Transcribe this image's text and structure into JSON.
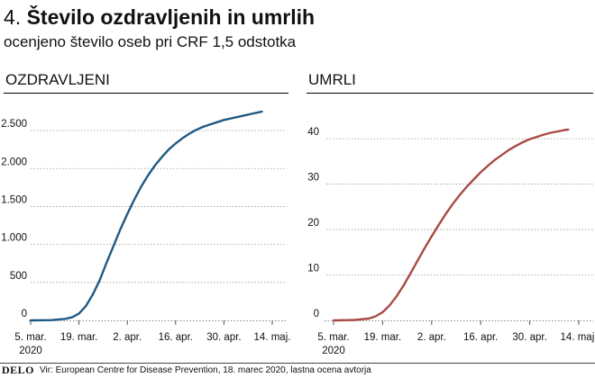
{
  "header": {
    "title_number": "4.",
    "title_text": "Število ozdravljenih in umrlih",
    "subtitle": "ocenjeno število oseb pri CRF 1,5 odstotka"
  },
  "footer": {
    "brand": "DELO",
    "source": "Vir: European Centre for Disease Prevention, 18. marec 2020, lastna ocena avtorja"
  },
  "colors": {
    "recovered": "#1f5a85",
    "deaths": "#a84a44",
    "grid": "#9a9a9a",
    "rule": "#000000"
  },
  "chart_data": [
    {
      "type": "line",
      "title": "OZDRAVLJENI",
      "x_ticks": [
        "5. mar.\n2020",
        "19. mar.",
        "2. apr.",
        "16. apr.",
        "30. apr.",
        "14. maj."
      ],
      "x_range": [
        0,
        70
      ],
      "y_ticks": [
        0,
        500,
        1000,
        1500,
        2000,
        2500
      ],
      "y_tick_labels": [
        "0",
        "500",
        "1.000",
        "1.500",
        "2.000",
        "2.500"
      ],
      "ylim": [
        0,
        2750
      ],
      "grid": true,
      "series": [
        {
          "x": [
            0,
            6,
            10,
            12,
            14,
            16,
            18,
            20,
            22,
            24,
            26,
            28,
            30,
            32,
            34,
            36,
            38,
            40,
            42,
            44,
            46,
            48,
            50,
            52,
            54,
            56,
            58,
            60,
            62,
            64,
            66,
            67
          ],
          "values": [
            0,
            3,
            20,
            40,
            90,
            190,
            340,
            530,
            760,
            980,
            1200,
            1400,
            1590,
            1760,
            1910,
            2040,
            2150,
            2250,
            2330,
            2400,
            2460,
            2510,
            2550,
            2580,
            2610,
            2640,
            2660,
            2680,
            2700,
            2720,
            2740,
            2750
          ]
        }
      ]
    },
    {
      "type": "line",
      "title": "UMRLI",
      "x_ticks": [
        "5. mar.\n2020",
        "19. mar.",
        "2. apr.",
        "16. apr.",
        "30. apr.",
        "14. maj."
      ],
      "x_range": [
        0,
        70
      ],
      "y_ticks": [
        0,
        10,
        20,
        30,
        40
      ],
      "y_tick_labels": [
        "0",
        "10",
        "20",
        "30",
        "40"
      ],
      "ylim": [
        0,
        42
      ],
      "grid": true,
      "series": [
        {
          "x": [
            0,
            6,
            10,
            12,
            14,
            16,
            18,
            20,
            22,
            24,
            26,
            28,
            30,
            32,
            34,
            36,
            38,
            40,
            42,
            44,
            46,
            48,
            50,
            52,
            54,
            56,
            58,
            60,
            62,
            64,
            66,
            67
          ],
          "values": [
            0,
            0.1,
            0.4,
            0.9,
            1.8,
            3.3,
            5.3,
            7.7,
            10.4,
            13.2,
            15.9,
            18.5,
            21,
            23.4,
            25.6,
            27.6,
            29.4,
            31,
            32.6,
            34,
            35.3,
            36.4,
            37.5,
            38.4,
            39.2,
            39.9,
            40.4,
            40.9,
            41.3,
            41.6,
            41.9,
            42
          ]
        }
      ]
    }
  ]
}
